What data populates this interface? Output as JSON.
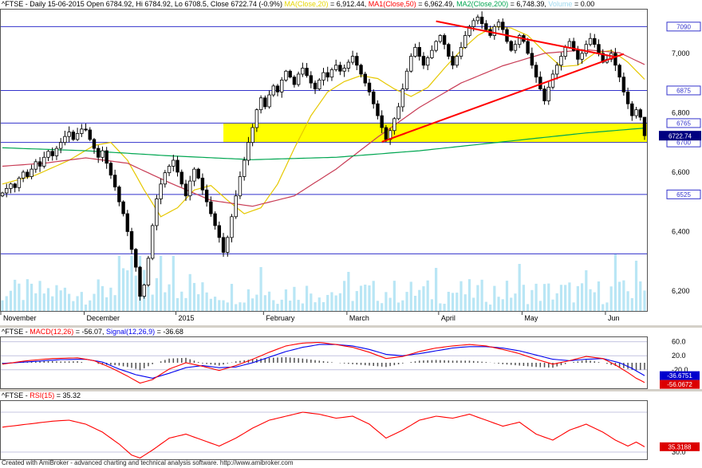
{
  "app": {
    "footer": "Created with AmiBroker - advanced charting and technical analysis software. http://www.amibroker.com"
  },
  "titles": {
    "price_segments": [
      {
        "text": "^FTSE - Daily 15-06-2015 Open 6784.92, Hi 6784.92, Lo 6708.5, Close 6722.74 (-0.9%) ",
        "color": "#000000"
      },
      {
        "text": "MA(Close,20)",
        "color": "#e6d600"
      },
      {
        "text": " = 6,912.44, ",
        "color": "#000000"
      },
      {
        "text": "MA1(Close,50)",
        "color": "#ff0000"
      },
      {
        "text": " = 6,962.49, ",
        "color": "#000000"
      },
      {
        "text": "MA2(Close,200)",
        "color": "#00a651"
      },
      {
        "text": " = 6,748.39, ",
        "color": "#000000"
      },
      {
        "text": "Volume",
        "color": "#9fd8ef"
      },
      {
        "text": " = 0.00",
        "color": "#000000"
      }
    ],
    "macd_segments": [
      {
        "text": "^FTSE - ",
        "color": "#000000"
      },
      {
        "text": "MACD(12,26)",
        "color": "#ff0000"
      },
      {
        "text": " = -56.07, ",
        "color": "#000000"
      },
      {
        "text": "Signal(12,26,9)",
        "color": "#0000ee"
      },
      {
        "text": " = -36.68",
        "color": "#000000"
      }
    ],
    "rsi_segments": [
      {
        "text": "^FTSE - ",
        "color": "#000000"
      },
      {
        "text": "RSI(15)",
        "color": "#ff0000"
      },
      {
        "text": " = 35.32",
        "color": "#000000"
      }
    ]
  },
  "axis": {
    "price_ticks": [
      {
        "label": "7,000",
        "value": 7000
      },
      {
        "label": "6,800",
        "value": 6800
      },
      {
        "label": "6,600",
        "value": 6600
      },
      {
        "label": "6,400",
        "value": 6400
      },
      {
        "label": "6,200",
        "value": 6200
      }
    ],
    "macd_ticks": [
      {
        "label": "60.0",
        "value": 60
      },
      {
        "label": "20.0",
        "value": 20
      },
      {
        "label": "-20.0",
        "value": -20
      }
    ],
    "rsi_ticks": [
      {
        "label": "30.0",
        "value": 30
      }
    ],
    "badges": {
      "last_price": {
        "label": "6722.74",
        "value": 6722.74,
        "bg": "#000080",
        "fg": "#ffffff"
      },
      "macd_signal": {
        "label": "-36.6751",
        "value": -36.6751,
        "bg": "#0000cd",
        "fg": "#ffffff"
      },
      "macd_value": {
        "label": "-56.0672",
        "value": -56.0672,
        "bg": "#dc0000",
        "fg": "#ffffff"
      },
      "rsi_value": {
        "label": "35.3188",
        "value": 35.3188,
        "bg": "#dc0000",
        "fg": "#ffffff"
      }
    }
  },
  "chart_data": [
    {
      "type": "candlestick",
      "symbol": "^FTSE",
      "interval": "Daily",
      "date": "15-06-2015",
      "last": {
        "open": 6784.92,
        "high": 6784.92,
        "low": 6708.5,
        "close": 6722.74,
        "change": "-0.9%"
      },
      "ylim": [
        6130,
        7150
      ],
      "first_open": 6520,
      "closes": [
        6530,
        6545,
        6560,
        6548,
        6580,
        6600,
        6585,
        6610,
        6635,
        6620,
        6650,
        6670,
        6655,
        6680,
        6700,
        6720,
        6735,
        6710,
        6730,
        6745,
        6742,
        6710,
        6680,
        6650,
        6672,
        6630,
        6590,
        6550,
        6500,
        6460,
        6400,
        6340,
        6280,
        6182,
        6220,
        6310,
        6420,
        6510,
        6560,
        6598,
        6620,
        6640,
        6600,
        6560,
        6520,
        6570,
        6610,
        6580,
        6540,
        6500,
        6460,
        6420,
        6380,
        6330,
        6380,
        6450,
        6520,
        6585,
        6640,
        6700,
        6750,
        6810,
        6850,
        6820,
        6860,
        6890,
        6870,
        6910,
        6940,
        6920,
        6895,
        6930,
        6950,
        6925,
        6900,
        6880,
        6910,
        6935,
        6920,
        6945,
        6960,
        6940,
        6950,
        6970,
        6990,
        6960,
        6930,
        6900,
        6870,
        6830,
        6790,
        6750,
        6710,
        6740,
        6780,
        6820,
        6880,
        6940,
        6990,
        7020,
        6990,
        6960,
        6985,
        7010,
        7040,
        7060,
        7030,
        6990,
        6960,
        6990,
        7020,
        7060,
        7090,
        7110,
        7122,
        7100,
        7080,
        7060,
        7090,
        7105,
        7080,
        7040,
        7010,
        7030,
        7060,
        7040,
        7000,
        6960,
        6920,
        6880,
        6840,
        6886,
        6930,
        6960,
        6990,
        7020,
        7040,
        7010,
        6980,
        7000,
        7030,
        7050,
        7030,
        7000,
        6970,
        6980,
        7000,
        6960,
        6920,
        6870,
        6830,
        6790,
        6810,
        6784.92,
        6722.74
      ],
      "x_months": [
        {
          "idx": 0,
          "label": "November"
        },
        {
          "idx": 20,
          "label": "December"
        },
        {
          "idx": 42,
          "label": "2015"
        },
        {
          "idx": 63,
          "label": "February"
        },
        {
          "idx": 83,
          "label": "March"
        },
        {
          "idx": 105,
          "label": "April"
        },
        {
          "idx": 125,
          "label": "May"
        },
        {
          "idx": 145,
          "label": "Jun"
        }
      ],
      "hlines": [
        {
          "value": 7090,
          "label": "7090"
        },
        {
          "value": 6875,
          "label": "6875"
        },
        {
          "value": 6765,
          "label": "6765"
        },
        {
          "value": 6700,
          "label": "6700"
        },
        {
          "value": 6525,
          "label": "6525"
        },
        {
          "value": 6325,
          "label": ""
        }
      ],
      "hline_color": "#3333cc",
      "highlight_zone": {
        "from_idx": 53,
        "top": 6765,
        "bottom": 6700,
        "color": "#ffff00"
      },
      "trendlines": [
        {
          "from_idx": 104,
          "from_price": 7108,
          "to_idx": 147,
          "to_price": 6988
        },
        {
          "from_idx": 91,
          "from_price": 6702,
          "to_idx": 149,
          "to_price": 6998
        }
      ],
      "trendline_color": "#ff0000",
      "moving_averages": [
        {
          "name": "MA(Close,20)",
          "last_value": 6912.44,
          "color": "#e6c800",
          "points": [
            [
              0,
              6560
            ],
            [
              8,
              6590
            ],
            [
              16,
              6640
            ],
            [
              22,
              6690
            ],
            [
              26,
              6700
            ],
            [
              30,
              6640
            ],
            [
              34,
              6540
            ],
            [
              38,
              6450
            ],
            [
              42,
              6480
            ],
            [
              46,
              6540
            ],
            [
              50,
              6555
            ],
            [
              54,
              6505
            ],
            [
              58,
              6460
            ],
            [
              62,
              6480
            ],
            [
              66,
              6560
            ],
            [
              70,
              6680
            ],
            [
              74,
              6790
            ],
            [
              78,
              6870
            ],
            [
              82,
              6905
            ],
            [
              86,
              6925
            ],
            [
              90,
              6915
            ],
            [
              94,
              6880
            ],
            [
              98,
              6855
            ],
            [
              102,
              6885
            ],
            [
              106,
              6950
            ],
            [
              110,
              7010
            ],
            [
              114,
              7060
            ],
            [
              118,
              7090
            ],
            [
              122,
              7085
            ],
            [
              126,
              7060
            ],
            [
              130,
              7005
            ],
            [
              134,
              6955
            ],
            [
              138,
              6960
            ],
            [
              142,
              7000
            ],
            [
              146,
              7010
            ],
            [
              150,
              6970
            ],
            [
              154,
              6912.44
            ]
          ]
        },
        {
          "name": "MA1(Close,50)",
          "last_value": 6962.49,
          "color": "#c83c55",
          "points": [
            [
              0,
              6620
            ],
            [
              10,
              6630
            ],
            [
              20,
              6648
            ],
            [
              30,
              6630
            ],
            [
              40,
              6565
            ],
            [
              50,
              6505
            ],
            [
              60,
              6485
            ],
            [
              70,
              6520
            ],
            [
              80,
              6610
            ],
            [
              90,
              6718
            ],
            [
              100,
              6818
            ],
            [
              110,
              6900
            ],
            [
              120,
              6958
            ],
            [
              130,
              7000
            ],
            [
              140,
              7012
            ],
            [
              148,
              7002
            ],
            [
              154,
              6962.49
            ]
          ]
        },
        {
          "name": "MA2(Close,200)",
          "last_value": 6748.39,
          "color": "#00a651",
          "points": [
            [
              0,
              6682
            ],
            [
              20,
              6672
            ],
            [
              40,
              6655
            ],
            [
              60,
              6642
            ],
            [
              80,
              6650
            ],
            [
              100,
              6672
            ],
            [
              120,
              6702
            ],
            [
              140,
              6732
            ],
            [
              154,
              6748.39
            ]
          ]
        }
      ],
      "volume": {
        "last_value": 0.0,
        "color": "#b9e6f5",
        "spikes": [
          [
            28,
            58
          ],
          [
            31,
            66
          ],
          [
            33,
            72
          ],
          [
            38,
            60
          ],
          [
            41,
            54
          ],
          [
            62,
            56
          ],
          [
            83,
            50
          ],
          [
            104,
            55
          ],
          [
            124,
            60
          ],
          [
            140,
            52
          ],
          [
            147,
            73
          ],
          [
            152,
            64
          ]
        ]
      }
    },
    {
      "type": "line",
      "name": "MACD(12,26)",
      "value": -56.07,
      "signal_name": "Signal(12,26,9)",
      "signal_value": -36.68,
      "ylim": [
        -75,
        75
      ],
      "macd_color": "#ff0000",
      "signal_color": "#0000ee",
      "histogram_color": "#505050",
      "grid": [
        60,
        20,
        -20
      ],
      "macd_points": [
        [
          0,
          -4
        ],
        [
          6,
          6
        ],
        [
          12,
          12
        ],
        [
          18,
          14
        ],
        [
          22,
          6
        ],
        [
          26,
          -14
        ],
        [
          30,
          -38
        ],
        [
          33,
          -58
        ],
        [
          36,
          -48
        ],
        [
          40,
          -18
        ],
        [
          44,
          0
        ],
        [
          48,
          -10
        ],
        [
          52,
          -22
        ],
        [
          56,
          -8
        ],
        [
          60,
          10
        ],
        [
          64,
          30
        ],
        [
          68,
          48
        ],
        [
          72,
          56
        ],
        [
          76,
          58
        ],
        [
          80,
          52
        ],
        [
          84,
          44
        ],
        [
          88,
          30
        ],
        [
          92,
          12
        ],
        [
          96,
          18
        ],
        [
          100,
          32
        ],
        [
          104,
          42
        ],
        [
          108,
          48
        ],
        [
          112,
          52
        ],
        [
          116,
          48
        ],
        [
          120,
          38
        ],
        [
          124,
          26
        ],
        [
          128,
          10
        ],
        [
          132,
          -4
        ],
        [
          136,
          6
        ],
        [
          140,
          18
        ],
        [
          144,
          12
        ],
        [
          147,
          -6
        ],
        [
          150,
          -28
        ],
        [
          152,
          -44
        ],
        [
          154,
          -56.07
        ]
      ],
      "signal_points": [
        [
          0,
          -2
        ],
        [
          8,
          4
        ],
        [
          14,
          9
        ],
        [
          20,
          10
        ],
        [
          24,
          2
        ],
        [
          28,
          -18
        ],
        [
          32,
          -34
        ],
        [
          36,
          -44
        ],
        [
          40,
          -30
        ],
        [
          44,
          -14
        ],
        [
          48,
          -8
        ],
        [
          52,
          -14
        ],
        [
          56,
          -12
        ],
        [
          60,
          0
        ],
        [
          64,
          16
        ],
        [
          68,
          32
        ],
        [
          72,
          44
        ],
        [
          76,
          52
        ],
        [
          80,
          52
        ],
        [
          84,
          48
        ],
        [
          88,
          38
        ],
        [
          92,
          24
        ],
        [
          96,
          20
        ],
        [
          100,
          26
        ],
        [
          104,
          34
        ],
        [
          108,
          42
        ],
        [
          112,
          46
        ],
        [
          116,
          46
        ],
        [
          120,
          42
        ],
        [
          124,
          34
        ],
        [
          128,
          22
        ],
        [
          132,
          10
        ],
        [
          136,
          6
        ],
        [
          140,
          10
        ],
        [
          144,
          12
        ],
        [
          148,
          0
        ],
        [
          151,
          -16
        ],
        [
          154,
          -36.68
        ]
      ]
    },
    {
      "type": "line",
      "name": "RSI(15)",
      "value": 35.32,
      "ylim": [
        22,
        82
      ],
      "color": "#ff0000",
      "grid": [
        70,
        30
      ],
      "points": [
        [
          0,
          55
        ],
        [
          4,
          57
        ],
        [
          8,
          59
        ],
        [
          12,
          61
        ],
        [
          16,
          62
        ],
        [
          20,
          58
        ],
        [
          24,
          50
        ],
        [
          28,
          38
        ],
        [
          31,
          27
        ],
        [
          33,
          24
        ],
        [
          36,
          32
        ],
        [
          40,
          44
        ],
        [
          44,
          48
        ],
        [
          48,
          42
        ],
        [
          52,
          36
        ],
        [
          56,
          44
        ],
        [
          60,
          54
        ],
        [
          64,
          62
        ],
        [
          68,
          66
        ],
        [
          72,
          70
        ],
        [
          76,
          68
        ],
        [
          80,
          64
        ],
        [
          84,
          66
        ],
        [
          88,
          58
        ],
        [
          92,
          44
        ],
        [
          96,
          52
        ],
        [
          100,
          62
        ],
        [
          104,
          66
        ],
        [
          108,
          64
        ],
        [
          112,
          68
        ],
        [
          116,
          62
        ],
        [
          120,
          56
        ],
        [
          124,
          60
        ],
        [
          128,
          48
        ],
        [
          132,
          42
        ],
        [
          136,
          52
        ],
        [
          140,
          58
        ],
        [
          144,
          50
        ],
        [
          147,
          42
        ],
        [
          150,
          36
        ],
        [
          152,
          40
        ],
        [
          154,
          35.32
        ]
      ]
    }
  ]
}
